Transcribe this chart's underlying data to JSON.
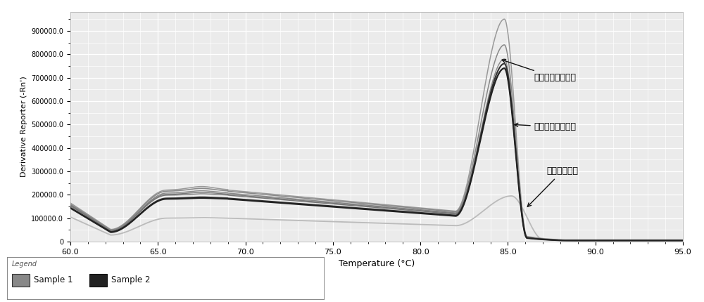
{
  "xlabel": "Temperature (°C)",
  "ylabel": "Derivative Reporter (-Rn')",
  "xlim": [
    60.0,
    95.0
  ],
  "ylim": [
    0,
    980000
  ],
  "yticks": [
    0,
    100000,
    200000,
    300000,
    400000,
    500000,
    600000,
    700000,
    800000,
    900000
  ],
  "ytick_labels": [
    "0",
    "100000.0",
    "200000.0",
    "300000.0",
    "400000.0",
    "500000.0",
    "600000.0",
    "700000.0",
    "800000.0",
    "900000.0"
  ],
  "xticks": [
    60.0,
    65.0,
    70.0,
    75.0,
    80.0,
    85.0,
    90.0,
    95.0
  ],
  "background_color": "#ebebeb",
  "grid_color": "#ffffff",
  "annotation_positive": "阳性样品溶解曲线",
  "annotation_negative": "阴性样品溶解曲线",
  "annotation_water": "水的溶解曲线",
  "legend_title": "Legend",
  "legend_sample1": "Sample 1",
  "legend_sample2": "Sample 2"
}
